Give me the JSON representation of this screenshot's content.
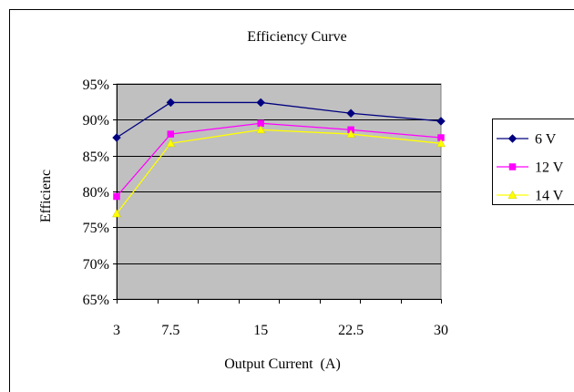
{
  "chart_data": {
    "type": "line",
    "title": "Efficiency Curve",
    "xlabel": "Output Current  (A)",
    "ylabel": "Efficienc",
    "categories": [
      "3",
      "7.5",
      "15",
      "22.5",
      "30"
    ],
    "ylim": [
      65,
      95
    ],
    "y_ticks": [
      65,
      70,
      75,
      80,
      85,
      90,
      95
    ],
    "y_tick_labels": [
      "65%",
      "70%",
      "75%",
      "80%",
      "85%",
      "90%",
      "95%"
    ],
    "grid": true,
    "legend_position": "right",
    "plot_background": "#c0c0c0",
    "series": [
      {
        "name": "6 V",
        "values": [
          87.5,
          92.4,
          92.4,
          90.9,
          89.8
        ],
        "color": "#000080",
        "marker": "diamond"
      },
      {
        "name": "12 V",
        "values": [
          79.3,
          88.0,
          89.5,
          88.6,
          87.5
        ],
        "color": "#ff00ff",
        "marker": "square"
      },
      {
        "name": "14 V",
        "values": [
          76.9,
          86.7,
          88.6,
          88.0,
          86.7
        ],
        "color": "#ffff00",
        "marker": "triangle"
      }
    ]
  }
}
